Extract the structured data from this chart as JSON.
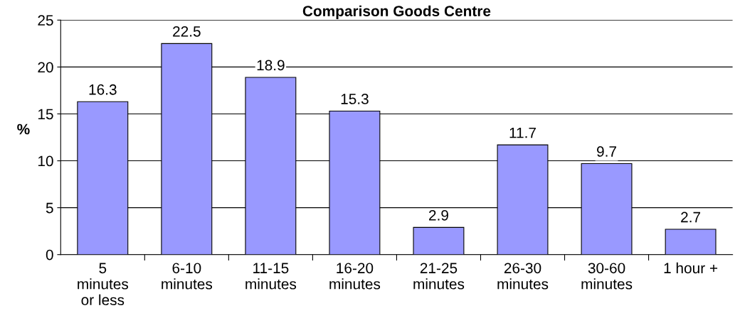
{
  "chart_data": {
    "type": "bar",
    "title": "Comparison Goods Centre",
    "ylabel": "%",
    "categories": [
      "5\nminutes\nor less",
      "6-10\nminutes",
      "11-15\nminutes",
      "16-20\nminutes",
      "21-25\nminutes",
      "26-30\nminutes",
      "30-60\nminutes",
      "1 hour +"
    ],
    "values": [
      16.3,
      22.5,
      18.9,
      15.3,
      2.9,
      11.7,
      9.7,
      2.7
    ],
    "color": "#9999ff",
    "ylim": [
      0,
      25
    ],
    "yticks": [
      0,
      5,
      10,
      15,
      20,
      25
    ],
    "grid": "y",
    "data_labels": true
  }
}
